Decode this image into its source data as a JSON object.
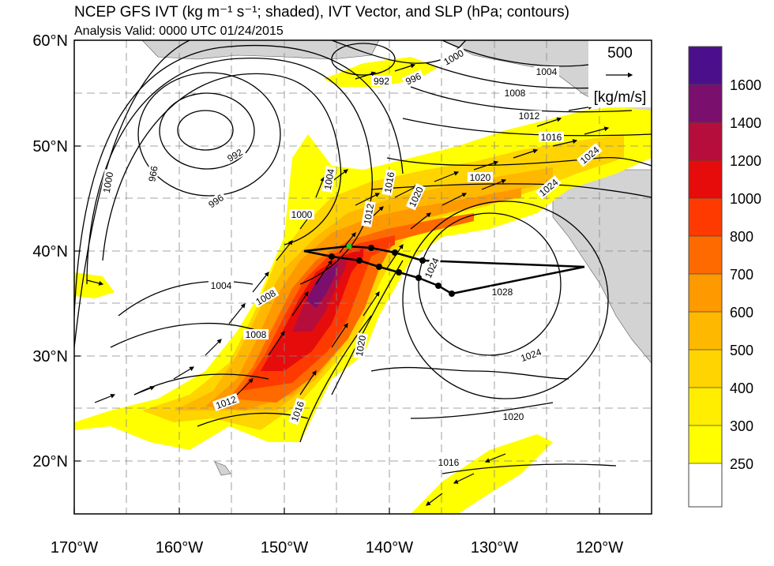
{
  "header": {
    "title": "NCEP GFS IVT (kg m⁻¹ s⁻¹; shaded), IVT Vector, and SLP (hPa; contours)",
    "subtitle": "Analysis Valid: 0000 UTC 01/24/2015"
  },
  "map": {
    "lat_labels": [
      "60°N",
      "50°N",
      "40°N",
      "30°N",
      "20°N"
    ],
    "lon_labels": [
      "170°W",
      "160°W",
      "150°W",
      "140°W",
      "130°W",
      "120°W"
    ],
    "slp_labels": [
      "992",
      "996",
      "1000",
      "1004",
      "1008",
      "1012",
      "1016",
      "1020",
      "1024",
      "1028",
      "966",
      "1000",
      "1004",
      "1008",
      "1012",
      "1016",
      "1020",
      "1024",
      "992",
      "996",
      "1000",
      "1004",
      "1008",
      "1012",
      "1016",
      "1020",
      "1024",
      "1016",
      "1020",
      "1024",
      "1028"
    ],
    "reference_vector": {
      "value": "500",
      "units": "[kg/m/s]"
    }
  },
  "colorbar": {
    "labels": [
      "1600",
      "1400",
      "1200",
      "1000",
      "800",
      "700",
      "600",
      "500",
      "400",
      "300",
      "250"
    ],
    "colors": [
      "#4b0f8c",
      "#7a0f6e",
      "#b50e3d",
      "#e60c0c",
      "#ff3a00",
      "#ff6a00",
      "#ff9900",
      "#ffb800",
      "#ffd400",
      "#ffee00",
      "#ffff00",
      "#ffffff"
    ]
  },
  "colors": {
    "land": "#d3d3d3",
    "contour": "#000000",
    "track_point_green": "#22cc22"
  }
}
